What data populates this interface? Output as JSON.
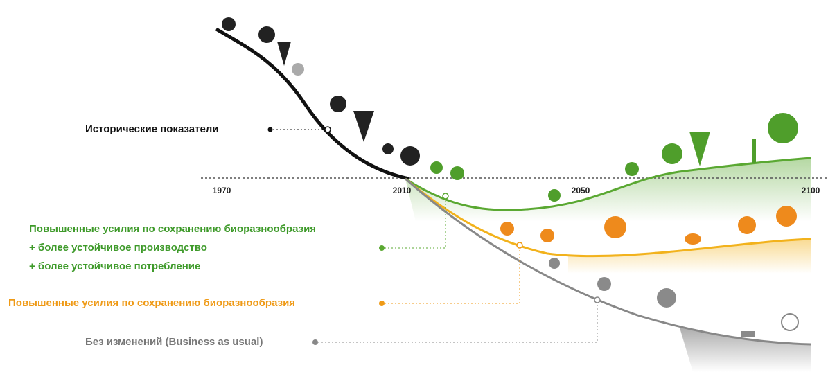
{
  "years": [
    "1970",
    "2010",
    "2050",
    "2100"
  ],
  "labels": {
    "historical": "Исторические показатели",
    "green": [
      "Повышенные усилия по сохранению биоразнообразия",
      "+ более устойчивое производство",
      "+ более устойчивое потребление"
    ],
    "orange": "Повышенные усилия по сохранению биоразнообразия",
    "gray": "Без изменений (Business as usual)"
  }
}
